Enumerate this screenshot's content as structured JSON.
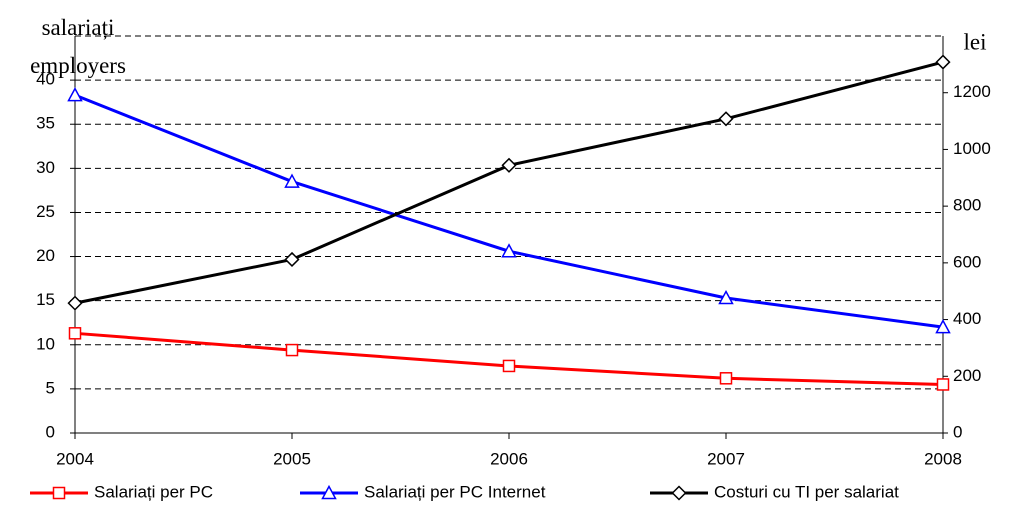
{
  "chart_data": {
    "type": "line",
    "y_title": "salariați employers",
    "y2_title": "lei",
    "x": [
      2004,
      2005,
      2006,
      2007,
      2008
    ],
    "xlim": [
      2004,
      2008
    ],
    "xticks": [
      2004,
      2005,
      2006,
      2007,
      2008
    ],
    "ylim": [
      0,
      45
    ],
    "yticks": [
      0,
      5,
      10,
      15,
      20,
      25,
      30,
      35,
      40
    ],
    "y2lim": [
      0,
      1400
    ],
    "y2ticks": [
      0,
      200,
      400,
      600,
      800,
      1000,
      1200
    ],
    "grid": true,
    "legend": "bottom",
    "series": [
      {
        "name": "Salariați per PC",
        "color": "#ff0000",
        "marker": "square",
        "values": [
          11.3,
          9.4,
          7.6,
          6.2,
          5.5
        ]
      },
      {
        "name": "Salariați per PC Internet",
        "color": "#0000ff",
        "marker": "triangle",
        "values": [
          38.3,
          28.5,
          20.6,
          15.3,
          12.0
        ]
      },
      {
        "name": "Costuri cu TI per salariat",
        "color": "#000000",
        "marker": "diamond",
        "axis": "y2",
        "values": [
          458,
          612,
          944,
          1108,
          1308
        ]
      }
    ]
  }
}
